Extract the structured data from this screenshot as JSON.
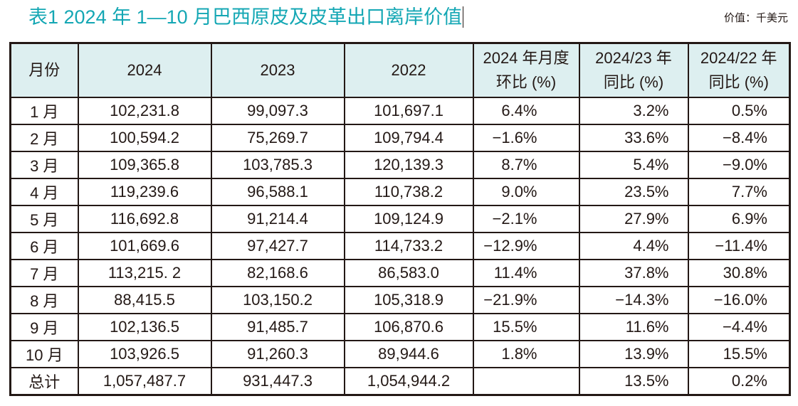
{
  "title": "表1  2024 年 1—10 月巴西原皮及皮革出口离岸价值",
  "unit": "价值：千美元",
  "table": {
    "headers": [
      {
        "line1": "月份",
        "line2": ""
      },
      {
        "line1": "2024",
        "line2": ""
      },
      {
        "line1": "2023",
        "line2": ""
      },
      {
        "line1": "2022",
        "line2": ""
      },
      {
        "line1": "2024 年月度",
        "line2": "环比 (%)"
      },
      {
        "line1": "2024/23 年",
        "line2": "同比 (%)"
      },
      {
        "line1": "2024/22 年",
        "line2": "同比 (%)"
      }
    ],
    "rows": [
      {
        "month": "1 月",
        "v2024": "102,231.8",
        "v2023": "99,097.3",
        "v2022": "101,697.1",
        "mom": "6.4%",
        "yoy23": "3.2%",
        "yoy22": "0.5%"
      },
      {
        "month": "2 月",
        "v2024": "100,594.2",
        "v2023": "75,269.7",
        "v2022": "109,794.4",
        "mom": "−1.6%",
        "yoy23": "33.6%",
        "yoy22": "−8.4%"
      },
      {
        "month": "3 月",
        "v2024": "109,365.8",
        "v2023": "103,785.3",
        "v2022": "120,139.3",
        "mom": "8.7%",
        "yoy23": "5.4%",
        "yoy22": "−9.0%"
      },
      {
        "month": "4 月",
        "v2024": "119,239.6",
        "v2023": "96,588.1",
        "v2022": "110,738.2",
        "mom": "9.0%",
        "yoy23": "23.5%",
        "yoy22": "7.7%"
      },
      {
        "month": "5 月",
        "v2024": "116,692.8",
        "v2023": "91,214.4",
        "v2022": "109,124.9",
        "mom": "−2.1%",
        "yoy23": "27.9%",
        "yoy22": "6.9%"
      },
      {
        "month": "6 月",
        "v2024": "101,669.6",
        "v2023": "97,427.7",
        "v2022": "114,733.2",
        "mom": "−12.9%",
        "yoy23": "4.4%",
        "yoy22": "−11.4%"
      },
      {
        "month": "7 月",
        "v2024": "113,215. 2",
        "v2023": "82,168.6",
        "v2022": "86,583.0",
        "mom": "11.4%",
        "yoy23": "37.8%",
        "yoy22": "30.8%"
      },
      {
        "month": "8 月",
        "v2024": "88,415.5",
        "v2023": "103,150.2",
        "v2022": "105,318.9",
        "mom": "−21.9%",
        "yoy23": "−14.3%",
        "yoy22": "−16.0%"
      },
      {
        "month": "9 月",
        "v2024": "102,136.5",
        "v2023": "91,485.7",
        "v2022": "106,870.6",
        "mom": "15.5%",
        "yoy23": "11.6%",
        "yoy22": "−4.4%"
      },
      {
        "month": "10 月",
        "v2024": "103,926.5",
        "v2023": "91,260.3",
        "v2022": "89,944.6",
        "mom": "1.8%",
        "yoy23": "13.9%",
        "yoy22": "15.5%"
      },
      {
        "month": "总计",
        "v2024": "1,057,487.7",
        "v2023": "931,447.3",
        "v2022": "1,054,944.2",
        "mom": "",
        "yoy23": "13.5%",
        "yoy22": "0.2%"
      }
    ]
  },
  "colors": {
    "title": "#14a7b4",
    "header_bg": "#ddeff0",
    "border": "#231815",
    "text": "#231815"
  }
}
